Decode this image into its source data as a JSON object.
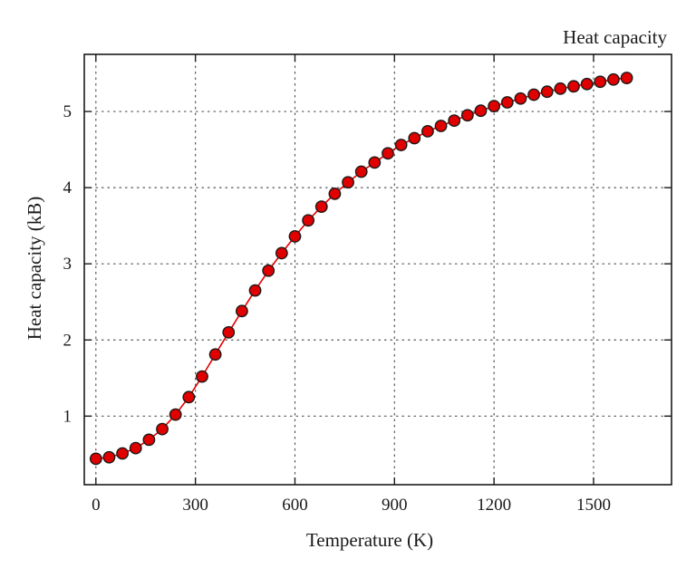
{
  "chart_data": {
    "type": "line",
    "title": "",
    "xlabel": "Temperature (K)",
    "ylabel": "Heat capacity (kB)",
    "xlim": [
      -35,
      1735
    ],
    "ylim": [
      0.1,
      5.75
    ],
    "xticks": [
      0,
      300,
      600,
      900,
      1200,
      1500
    ],
    "yticks": [
      1,
      2,
      3,
      4,
      5
    ],
    "grid": true,
    "legend_position": "top-right",
    "series": [
      {
        "name": "Heat capacity",
        "color": "#e00000",
        "marker": "circle",
        "x": [
          0,
          40,
          80,
          120,
          160,
          200,
          240,
          280,
          320,
          360,
          400,
          440,
          480,
          520,
          560,
          600,
          640,
          680,
          720,
          760,
          800,
          840,
          880,
          920,
          960,
          1000,
          1040,
          1080,
          1120,
          1160,
          1200,
          1240,
          1280,
          1320,
          1360,
          1400,
          1440,
          1480,
          1520,
          1560,
          1600
        ],
        "y": [
          0.44,
          0.46,
          0.51,
          0.58,
          0.69,
          0.83,
          1.02,
          1.25,
          1.52,
          1.81,
          2.1,
          2.38,
          2.65,
          2.91,
          3.14,
          3.36,
          3.57,
          3.75,
          3.92,
          4.07,
          4.21,
          4.33,
          4.45,
          4.56,
          4.65,
          4.74,
          4.81,
          4.88,
          4.95,
          5.01,
          5.07,
          5.12,
          5.17,
          5.22,
          5.26,
          5.3,
          5.33,
          5.36,
          5.39,
          5.42,
          5.44
        ]
      }
    ]
  }
}
